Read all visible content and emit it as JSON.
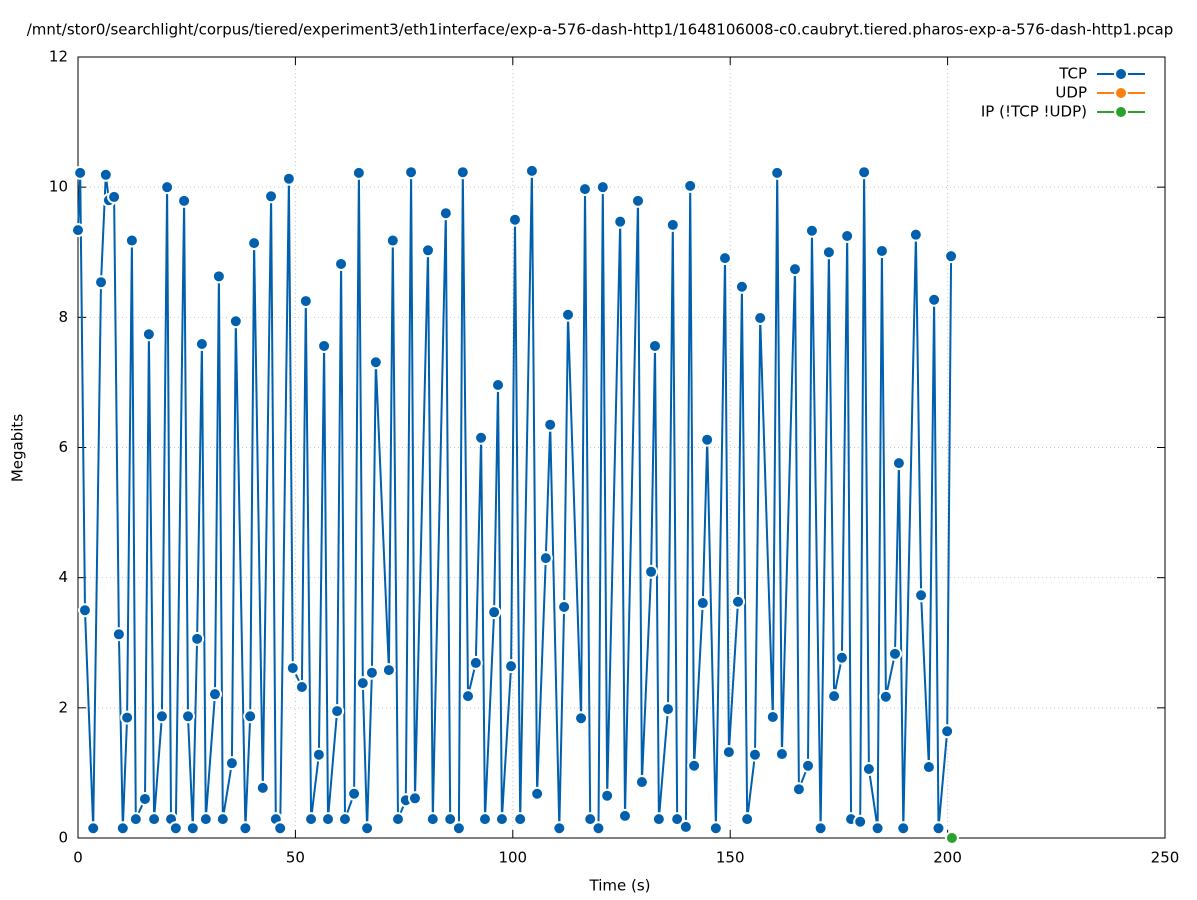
{
  "chart_data": {
    "type": "line",
    "title": "/mnt/stor0/searchlight/corpus/tiered/experiment3/eth1interface/exp-a-576-dash-http1/1648106008-c0.caubryt.tiered.pharos-exp-a-576-dash-http1.pcap",
    "xlabel": "Time (s)",
    "ylabel": "Megabits",
    "xlim": [
      0,
      250
    ],
    "ylim": [
      0,
      12
    ],
    "xticks": [
      0,
      50,
      100,
      150,
      200,
      250
    ],
    "yticks": [
      0,
      2,
      4,
      6,
      8,
      10,
      12
    ],
    "grid": true,
    "legend": "top-right",
    "series": [
      {
        "name": "TCP",
        "color": "#0060ad",
        "x": [
          0,
          0.5,
          1.6,
          3.5,
          5.3,
          6.4,
          7.1,
          8.3,
          9.4,
          10.3,
          11.3,
          12.4,
          13.3,
          15.4,
          16.3,
          17.5,
          19.3,
          20.5,
          21.4,
          22.5,
          24.4,
          25.3,
          26.4,
          27.4,
          28.5,
          29.4,
          31.5,
          32.4,
          33.3,
          35.4,
          36.3,
          38.5,
          39.6,
          40.5,
          42.5,
          44.4,
          45.5,
          46.5,
          48.5,
          49.4,
          51.5,
          52.4,
          53.6,
          55.4,
          56.6,
          57.5,
          59.6,
          60.5,
          61.4,
          63.5,
          64.6,
          65.5,
          66.5,
          67.6,
          68.5,
          71.5,
          72.4,
          73.6,
          75.4,
          76.6,
          77.5,
          80.5,
          81.6,
          84.6,
          85.6,
          87.6,
          88.5,
          89.7,
          91.5,
          92.7,
          93.6,
          95.7,
          96.6,
          97.5,
          99.6,
          100.5,
          101.7,
          104.4,
          105.6,
          107.6,
          108.6,
          110.7,
          111.8,
          112.7,
          115.7,
          116.6,
          117.8,
          119.7,
          120.7,
          121.7,
          124.7,
          125.8,
          128.8,
          129.7,
          131.8,
          132.7,
          133.6,
          135.7,
          136.8,
          137.8,
          139.8,
          140.8,
          141.7,
          143.7,
          144.7,
          146.7,
          148.8,
          149.7,
          151.8,
          152.7,
          153.9,
          155.7,
          156.9,
          159.8,
          160.8,
          161.9,
          164.9,
          165.8,
          167.9,
          168.8,
          170.8,
          172.7,
          173.9,
          175.7,
          176.9,
          177.8,
          179.9,
          180.8,
          181.9,
          183.9,
          184.9,
          185.8,
          187.9,
          188.8,
          189.8,
          192.7,
          193.9,
          195.7,
          196.9,
          197.9,
          199.9,
          200.8
        ],
        "values": [
          9.34,
          10.22,
          3.5,
          0.15,
          8.54,
          10.19,
          9.8,
          9.85,
          3.13,
          0.15,
          1.85,
          9.18,
          0.29,
          0.6,
          7.74,
          0.29,
          1.87,
          10.0,
          0.29,
          0.15,
          9.79,
          1.87,
          0.15,
          3.06,
          7.59,
          0.29,
          2.21,
          8.63,
          0.29,
          1.15,
          7.94,
          0.15,
          1.87,
          9.14,
          0.77,
          9.86,
          0.29,
          0.15,
          10.13,
          2.61,
          2.32,
          8.25,
          0.29,
          1.28,
          7.56,
          0.29,
          1.95,
          8.82,
          0.29,
          0.68,
          10.22,
          2.38,
          0.15,
          2.54,
          7.31,
          2.58,
          9.18,
          0.29,
          0.58,
          10.23,
          0.61,
          9.03,
          0.29,
          9.6,
          0.29,
          0.15,
          10.23,
          2.18,
          2.69,
          6.15,
          0.29,
          3.47,
          6.96,
          0.29,
          2.64,
          9.5,
          0.29,
          10.25,
          0.68,
          4.3,
          6.35,
          0.15,
          3.55,
          8.04,
          1.84,
          9.97,
          0.29,
          0.15,
          10.0,
          0.65,
          9.47,
          0.34,
          9.79,
          0.86,
          4.09,
          7.56,
          0.29,
          1.98,
          9.42,
          0.29,
          0.17,
          10.02,
          1.11,
          3.61,
          6.12,
          0.15,
          8.91,
          1.32,
          3.63,
          8.47,
          0.29,
          1.28,
          7.99,
          1.86,
          10.22,
          1.29,
          8.74,
          0.75,
          1.11,
          9.33,
          0.15,
          9.0,
          2.18,
          2.77,
          9.25,
          0.29,
          0.25,
          10.23,
          1.06,
          0.15,
          9.02,
          2.17,
          2.83,
          5.76,
          0.15,
          9.27,
          3.73,
          1.09,
          8.27,
          0.15,
          1.64,
          8.94
        ]
      },
      {
        "name": "UDP",
        "color": "#ff7f0e",
        "x": [],
        "values": []
      },
      {
        "name": "IP (!TCP  !UDP)",
        "color": "#2ca02c",
        "x": [
          201
        ],
        "values": [
          0
        ]
      }
    ]
  }
}
